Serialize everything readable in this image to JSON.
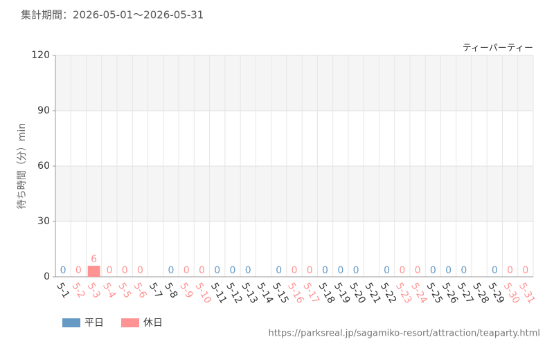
{
  "chart_data": {
    "type": "bar",
    "title": "集計期間：2026-05-01～2026-05-31",
    "subtitle": "ティーパーティー",
    "y_label": "待ち時間（分）min",
    "source": "https://parksreal.jp/sagamiko-resort/attraction/teaparty.html",
    "categories": [
      "5-1",
      "5-2",
      "5-3",
      "5-4",
      "5-5",
      "5-6",
      "5-7",
      "5-8",
      "5-9",
      "5-10",
      "5-11",
      "5-12",
      "5-13",
      "5-14",
      "5-15",
      "5-16",
      "5-17",
      "5-18",
      "5-19",
      "5-20",
      "5-21",
      "5-22",
      "5-23",
      "5-24",
      "5-25",
      "5-26",
      "5-27",
      "5-28",
      "5-29",
      "5-30",
      "5-31"
    ],
    "series": [
      {
        "name": "平日",
        "color": "#6699c4",
        "values": [
          0,
          null,
          null,
          null,
          null,
          null,
          null,
          0,
          null,
          null,
          0,
          0,
          0,
          null,
          0,
          null,
          null,
          0,
          0,
          0,
          null,
          0,
          null,
          null,
          0,
          0,
          0,
          null,
          0,
          null,
          null
        ]
      },
      {
        "name": "休日",
        "color": "#ff9292",
        "values": [
          null,
          0,
          6,
          0,
          0,
          0,
          null,
          null,
          0,
          0,
          null,
          null,
          null,
          null,
          null,
          0,
          0,
          null,
          null,
          null,
          null,
          null,
          0,
          0,
          null,
          null,
          null,
          null,
          null,
          0,
          0
        ]
      }
    ],
    "ylim": [
      0,
      120
    ],
    "yticks": [
      0,
      30,
      60,
      90,
      120
    ],
    "grid": true
  }
}
